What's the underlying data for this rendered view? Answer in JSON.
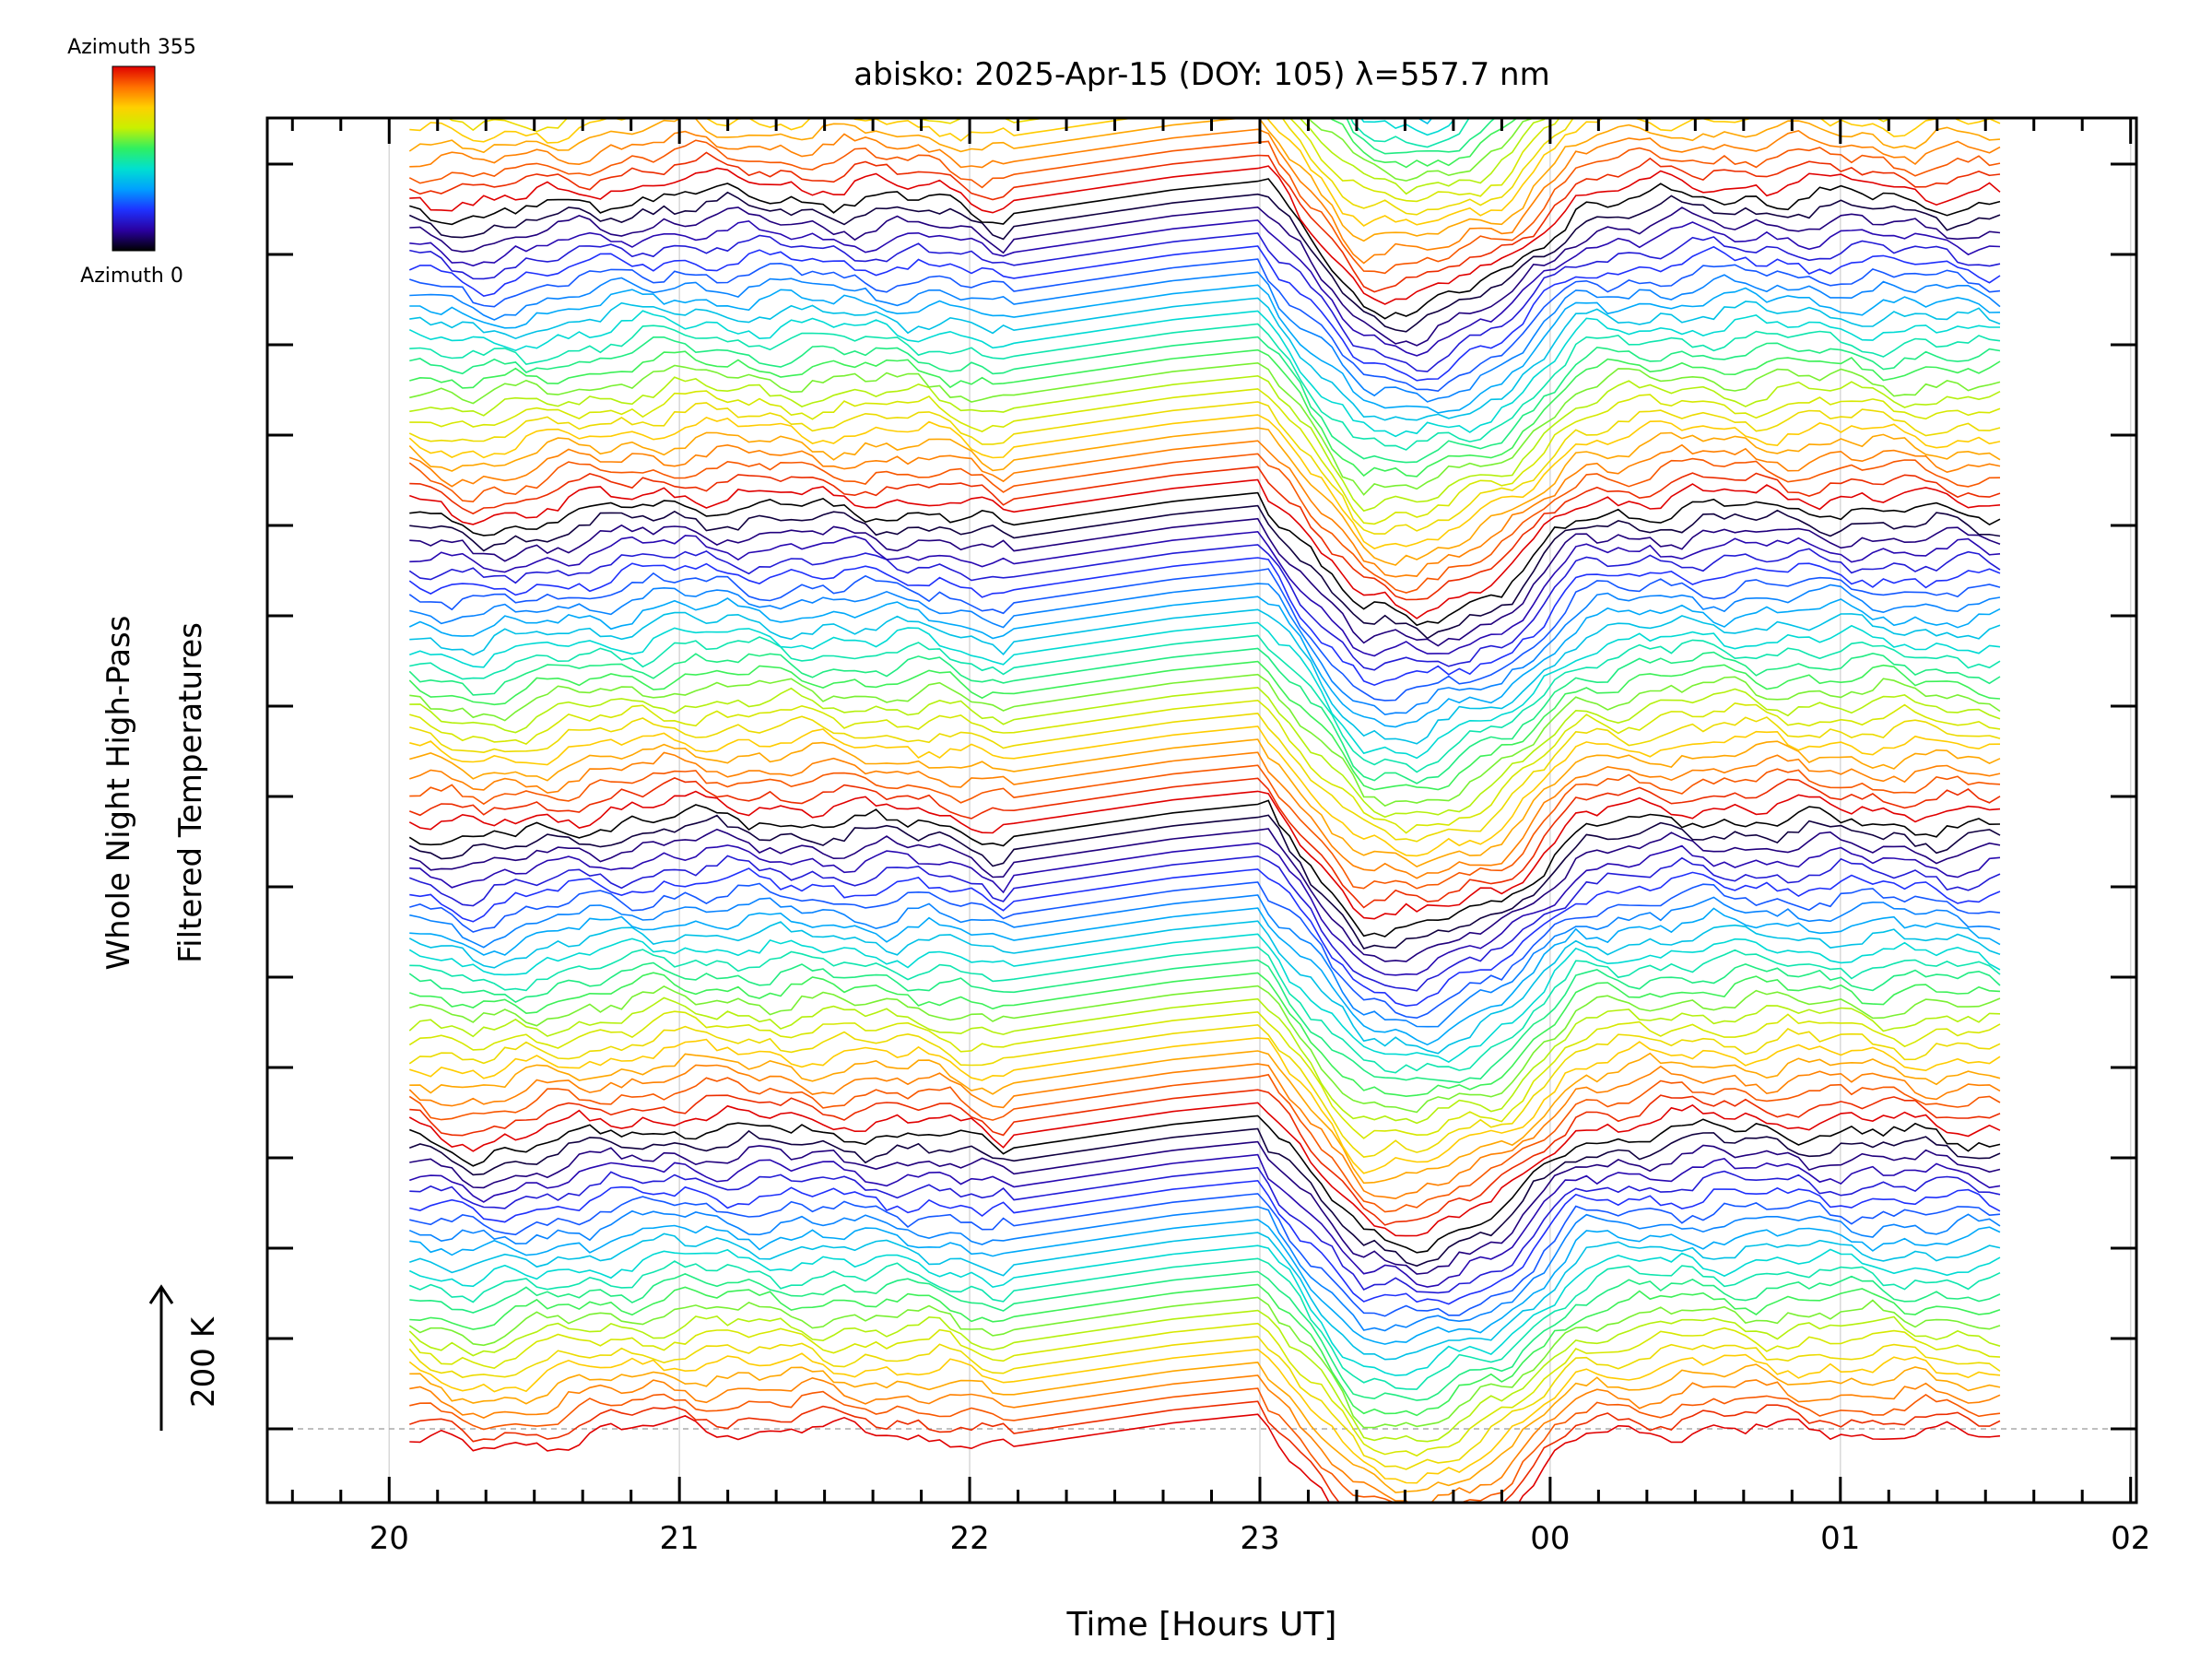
{
  "chart_data": {
    "type": "line",
    "title": "abisko: 2025-Apr-15 (DOY: 105) λ=557.7 nm",
    "xlabel": "Time [Hours UT]",
    "ylabel_line1": "Whole Night High-Pass",
    "ylabel_line2": "Filtered Temperatures",
    "scale_label": "200 K",
    "colorbar": {
      "top_label": "Azimuth 355",
      "bottom_label": "Azimuth 0",
      "colors": [
        "#000000",
        "#2a00a0",
        "#1e32ff",
        "#00a0ff",
        "#00e0d0",
        "#30f060",
        "#c8f000",
        "#ffd000",
        "#ff7000",
        "#e00000"
      ]
    },
    "x_tick_labels": [
      "20",
      "21",
      "22",
      "23",
      "00",
      "01",
      "02"
    ],
    "x_tick_hours": [
      20,
      21,
      22,
      23,
      24,
      25,
      26
    ],
    "xlim": [
      19.58,
      26.02
    ],
    "series_start_hour": 20.07,
    "series_end_hour": 25.55,
    "num_series": 143,
    "azimuth_range": [
      0,
      355
    ],
    "group_size": 24,
    "series_spacing_K": 22,
    "dip_shape": {
      "knots_hour": [
        20.07,
        20.3,
        20.6,
        21.0,
        21.4,
        21.9,
        22.1,
        22.15,
        22.7,
        23.0,
        23.35,
        23.55,
        23.85,
        24.1,
        24.5,
        25.0,
        25.3,
        25.55
      ],
      "offset_K": [
        0,
        -25,
        0,
        20,
        12,
        5,
        -20,
        -15,
        25,
        40,
        -165,
        -175,
        -120,
        0,
        15,
        12,
        5,
        0
      ]
    },
    "grid": true,
    "legend": "colorbar top-left"
  }
}
